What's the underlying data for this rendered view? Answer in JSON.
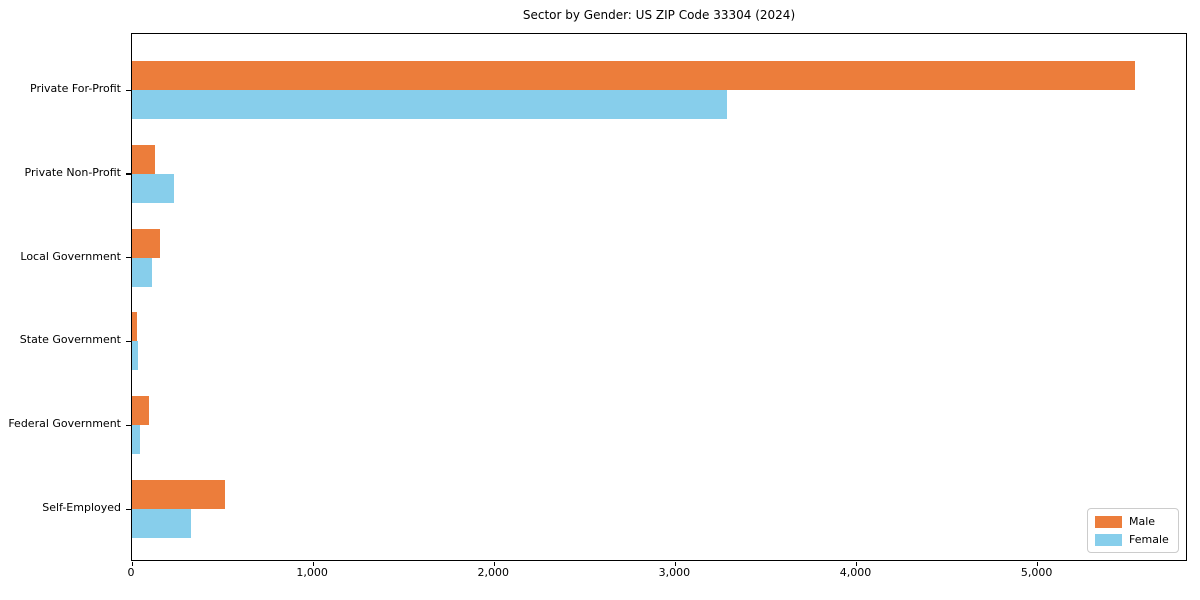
{
  "chart_data": {
    "type": "bar",
    "orientation": "horizontal",
    "title": "Sector by Gender: US ZIP Code 33304 (2024)",
    "categories": [
      "Private For-Profit",
      "Private Non-Profit",
      "Local Government",
      "State Government",
      "Federal Government",
      "Self-Employed"
    ],
    "series": [
      {
        "name": "Male",
        "color": "#ec7d3b",
        "values": [
          5540,
          127,
          155,
          30,
          92,
          513
        ]
      },
      {
        "name": "Female",
        "color": "#87ceeb",
        "values": [
          3285,
          232,
          110,
          33,
          45,
          326
        ]
      }
    ],
    "xlabel": "",
    "ylabel": "",
    "xlim": [
      0,
      5830
    ],
    "x_ticks": [
      0,
      1000,
      2000,
      3000,
      4000,
      5000
    ],
    "x_tick_labels": [
      "0",
      "1,000",
      "2,000",
      "3,000",
      "4,000",
      "5,000"
    ],
    "grid": false,
    "legend_position": "lower right",
    "legend": {
      "male_label": "Male",
      "female_label": "Female"
    }
  }
}
